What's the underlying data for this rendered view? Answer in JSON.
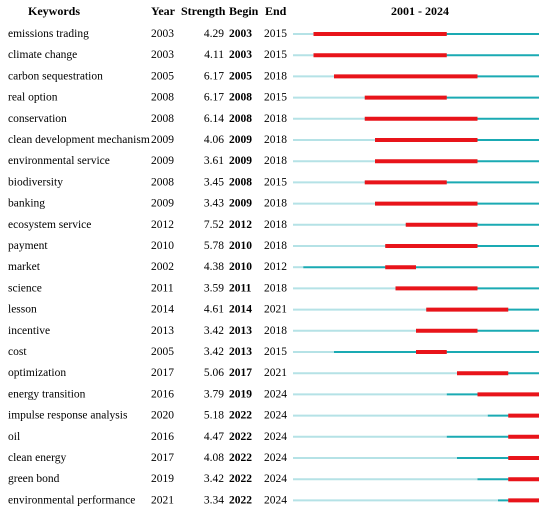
{
  "chart_data": {
    "type": "table",
    "headers": {
      "keywords": "Keywords",
      "year": "Year",
      "strength": "Strength",
      "begin": "Begin",
      "end": "End",
      "range": "2001 - 2024"
    },
    "range_start": 2001,
    "range_end": 2024,
    "rows": [
      {
        "keyword": "emissions trading",
        "year": 2003,
        "strength": "4.29",
        "begin": 2003,
        "end": 2015
      },
      {
        "keyword": "climate change",
        "year": 2003,
        "strength": "4.11",
        "begin": 2003,
        "end": 2015
      },
      {
        "keyword": "carbon sequestration",
        "year": 2005,
        "strength": "6.17",
        "begin": 2005,
        "end": 2018
      },
      {
        "keyword": "real option",
        "year": 2008,
        "strength": "6.17",
        "begin": 2008,
        "end": 2015
      },
      {
        "keyword": "conservation",
        "year": 2008,
        "strength": "6.14",
        "begin": 2008,
        "end": 2018
      },
      {
        "keyword": "clean development mechanism",
        "year": 2009,
        "strength": "4.06",
        "begin": 2009,
        "end": 2018
      },
      {
        "keyword": "environmental service",
        "year": 2009,
        "strength": "3.61",
        "begin": 2009,
        "end": 2018
      },
      {
        "keyword": "biodiversity",
        "year": 2008,
        "strength": "3.45",
        "begin": 2008,
        "end": 2015
      },
      {
        "keyword": "banking",
        "year": 2009,
        "strength": "3.43",
        "begin": 2009,
        "end": 2018
      },
      {
        "keyword": "ecosystem service",
        "year": 2012,
        "strength": "7.52",
        "begin": 2012,
        "end": 2018
      },
      {
        "keyword": "payment",
        "year": 2010,
        "strength": "5.78",
        "begin": 2010,
        "end": 2018
      },
      {
        "keyword": "market",
        "year": 2002,
        "strength": "4.38",
        "begin": 2010,
        "end": 2012
      },
      {
        "keyword": "science",
        "year": 2011,
        "strength": "3.59",
        "begin": 2011,
        "end": 2018
      },
      {
        "keyword": "lesson",
        "year": 2014,
        "strength": "4.61",
        "begin": 2014,
        "end": 2021
      },
      {
        "keyword": "incentive",
        "year": 2013,
        "strength": "3.42",
        "begin": 2013,
        "end": 2018
      },
      {
        "keyword": "cost",
        "year": 2005,
        "strength": "3.42",
        "begin": 2013,
        "end": 2015
      },
      {
        "keyword": "optimization",
        "year": 2017,
        "strength": "5.06",
        "begin": 2017,
        "end": 2021
      },
      {
        "keyword": "energy transition",
        "year": 2016,
        "strength": "3.79",
        "begin": 2019,
        "end": 2024
      },
      {
        "keyword": "impulse response analysis",
        "year": 2020,
        "strength": "5.18",
        "begin": 2022,
        "end": 2024
      },
      {
        "keyword": "oil",
        "year": 2016,
        "strength": "4.47",
        "begin": 2022,
        "end": 2024
      },
      {
        "keyword": "clean energy",
        "year": 2017,
        "strength": "4.08",
        "begin": 2022,
        "end": 2024
      },
      {
        "keyword": "green bond",
        "year": 2019,
        "strength": "3.42",
        "begin": 2022,
        "end": 2024
      },
      {
        "keyword": "environmental performance",
        "year": 2021,
        "strength": "3.34",
        "begin": 2022,
        "end": 2024
      }
    ],
    "colors": {
      "burst": "#e8141a",
      "active": "#1aaab3",
      "inactive": "#b5e2e6"
    }
  }
}
